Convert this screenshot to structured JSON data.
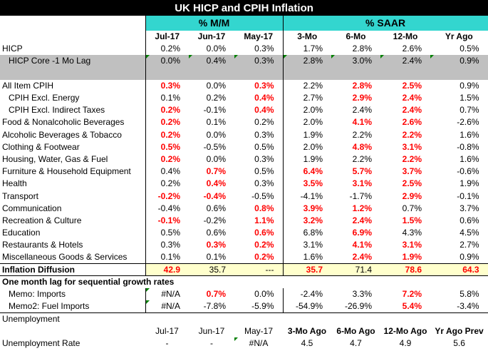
{
  "title": "UK HICP and CPIH Inflation",
  "group_mm": "% M/M",
  "group_saar": "% SAAR",
  "col_headers": [
    "Jul-17",
    "Jun-17",
    "May-17",
    "3-Mo",
    "6-Mo",
    "12-Mo",
    "Yr Ago"
  ],
  "rows": [
    {
      "label": "HICP",
      "v": [
        "0.2%",
        "0.0%",
        "0.3%",
        "1.7%",
        "2.8%",
        "2.6%",
        "0.5%"
      ]
    },
    {
      "label": "HICP Core -1 Mo Lag",
      "v": [
        "0.0%",
        "0.4%",
        "0.3%",
        "2.8%",
        "3.0%",
        "2.4%",
        "0.9%"
      ]
    },
    {
      "label": "",
      "v": [
        "",
        "",
        "",
        "",
        "",
        "",
        ""
      ]
    },
    {
      "label": "All Item CPIH",
      "v": [
        "0.3%",
        "0.0%",
        "0.3%",
        "2.2%",
        "2.8%",
        "2.5%",
        "0.9%"
      ]
    },
    {
      "label": "CPIH Excl. Energy",
      "v": [
        "0.1%",
        "0.2%",
        "0.4%",
        "2.7%",
        "2.9%",
        "2.4%",
        "1.5%"
      ]
    },
    {
      "label": "CPIH Excl. Indirect Taxes",
      "v": [
        "0.2%",
        "-0.1%",
        "0.4%",
        "2.0%",
        "2.4%",
        "2.4%",
        "0.7%"
      ]
    },
    {
      "label": "Food & Nonalcoholic Beverages",
      "v": [
        "0.2%",
        "0.1%",
        "0.2%",
        "2.0%",
        "4.1%",
        "2.6%",
        "-2.6%"
      ]
    },
    {
      "label": "Alcoholic Beverages & Tobacco",
      "v": [
        "0.2%",
        "0.0%",
        "0.3%",
        "1.9%",
        "2.2%",
        "2.2%",
        "1.6%"
      ]
    },
    {
      "label": "Clothing & Footwear",
      "v": [
        "0.5%",
        "-0.5%",
        "0.5%",
        "2.0%",
        "4.8%",
        "3.1%",
        "-0.8%"
      ]
    },
    {
      "label": "Housing, Water, Gas & Fuel",
      "v": [
        "0.2%",
        "0.0%",
        "0.3%",
        "1.9%",
        "2.2%",
        "2.2%",
        "1.6%"
      ]
    },
    {
      "label": "Furniture & Household Equipment",
      "v": [
        "0.4%",
        "0.7%",
        "0.5%",
        "6.4%",
        "5.7%",
        "3.7%",
        "-0.6%"
      ]
    },
    {
      "label": "Health",
      "v": [
        "0.2%",
        "0.4%",
        "0.3%",
        "3.5%",
        "3.1%",
        "2.5%",
        "1.9%"
      ]
    },
    {
      "label": "Transport",
      "v": [
        "-0.2%",
        "-0.4%",
        "-0.5%",
        "-4.1%",
        "-1.7%",
        "2.9%",
        "-0.1%"
      ]
    },
    {
      "label": "Communication",
      "v": [
        "-0.4%",
        "0.6%",
        "0.8%",
        "3.9%",
        "1.2%",
        "0.7%",
        "3.7%"
      ]
    },
    {
      "label": "Recreation & Culture",
      "v": [
        "-0.1%",
        "-0.2%",
        "1.1%",
        "3.2%",
        "2.4%",
        "1.5%",
        "0.6%"
      ]
    },
    {
      "label": "Education",
      "v": [
        "0.5%",
        "0.6%",
        "0.6%",
        "6.8%",
        "6.9%",
        "4.3%",
        "4.5%"
      ]
    },
    {
      "label": "Restaurants & Hotels",
      "v": [
        "0.3%",
        "0.3%",
        "0.2%",
        "3.1%",
        "4.1%",
        "3.1%",
        "2.7%"
      ]
    },
    {
      "label": "Miscellaneous Goods & Services",
      "v": [
        "0.1%",
        "0.1%",
        "0.2%",
        "1.6%",
        "2.4%",
        "1.9%",
        "0.9%"
      ]
    }
  ],
  "diffusion": {
    "label": "Inflation Diffusion",
    "v": [
      "42.9",
      "35.7",
      "---",
      "35.7",
      "71.4",
      "78.6",
      "64.3"
    ]
  },
  "lag_note": "One month lag for sequential growth rates",
  "memo_rows": [
    {
      "label": "Memo:  Imports",
      "v": [
        "#N/A",
        "0.7%",
        "0.0%",
        "-2.4%",
        "3.3%",
        "7.2%",
        "5.8%"
      ]
    },
    {
      "label": "Memo2: Fuel Imports",
      "v": [
        "#N/A",
        "-7.8%",
        "-5.9%",
        "-54.9%",
        "-26.9%",
        "5.4%",
        "-3.4%"
      ]
    }
  ],
  "unemployment_label": "Unemployment",
  "unemp_headers": [
    "Jul-17",
    "Jun-17",
    "May-17",
    "3-Mo Ago",
    "6-Mo Ago",
    "12-Mo Ago",
    "Yr Ago Prev"
  ],
  "unemp_row": {
    "label": "Unemployment Rate",
    "v": [
      "-",
      "-",
      "#N/A",
      "4.5",
      "4.7",
      "4.9",
      "5.6"
    ]
  },
  "red_cells": [
    [
      3,
      0
    ],
    [
      3,
      2
    ],
    [
      3,
      4
    ],
    [
      3,
      5
    ],
    [
      4,
      2
    ],
    [
      4,
      4
    ],
    [
      4,
      5
    ],
    [
      5,
      0
    ],
    [
      5,
      2
    ],
    [
      5,
      5
    ],
    [
      6,
      0
    ],
    [
      6,
      4
    ],
    [
      6,
      5
    ],
    [
      7,
      0
    ],
    [
      7,
      5
    ],
    [
      8,
      0
    ],
    [
      8,
      4
    ],
    [
      8,
      5
    ],
    [
      9,
      0
    ],
    [
      9,
      5
    ],
    [
      10,
      1
    ],
    [
      10,
      3
    ],
    [
      10,
      4
    ],
    [
      10,
      5
    ],
    [
      11,
      1
    ],
    [
      11,
      3
    ],
    [
      11,
      4
    ],
    [
      11,
      5
    ],
    [
      12,
      0
    ],
    [
      12,
      1
    ],
    [
      12,
      5
    ],
    [
      13,
      2
    ],
    [
      13,
      3
    ],
    [
      13,
      4
    ],
    [
      14,
      0
    ],
    [
      14,
      2
    ],
    [
      14,
      3
    ],
    [
      14,
      4
    ],
    [
      14,
      5
    ],
    [
      15,
      2
    ],
    [
      15,
      4
    ],
    [
      16,
      1
    ],
    [
      16,
      2
    ],
    [
      16,
      4
    ],
    [
      16,
      5
    ],
    [
      17,
      2
    ],
    [
      17,
      4
    ],
    [
      17,
      5
    ]
  ],
  "red_diffusion": [
    0,
    3,
    5,
    6
  ],
  "red_memo": [
    [
      0,
      1
    ],
    [
      0,
      5
    ],
    [
      1,
      5
    ]
  ],
  "colors": {
    "header_teal": "#33d6cf",
    "highlight_red": "#ff0000",
    "gray_band": "#c0c0c0",
    "diffusion_bg": "#ffffcc",
    "title_bg": "#000000"
  }
}
